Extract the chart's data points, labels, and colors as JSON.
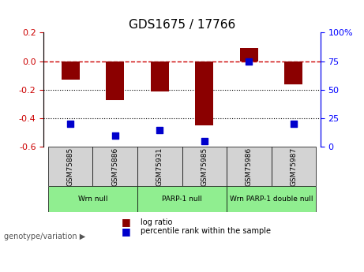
{
  "title": "GDS1675 / 17766",
  "samples": [
    "GSM75885",
    "GSM75886",
    "GSM75931",
    "GSM75985",
    "GSM75986",
    "GSM75987"
  ],
  "log_ratios": [
    -0.13,
    -0.27,
    -0.21,
    -0.45,
    0.09,
    -0.16
  ],
  "percentile_ranks": [
    20,
    10,
    15,
    5,
    75,
    20
  ],
  "ylim_left": [
    -0.6,
    0.2
  ],
  "ylim_right": [
    0,
    100
  ],
  "right_ticks": [
    0,
    25,
    50,
    75,
    100
  ],
  "right_tick_labels": [
    "0",
    "25",
    "50",
    "75",
    "100%"
  ],
  "left_ticks": [
    -0.6,
    -0.4,
    -0.2,
    0.0,
    0.2
  ],
  "hline_value": 0.0,
  "dotted_lines": [
    -0.2,
    -0.4
  ],
  "bar_color": "#8B0000",
  "dot_color": "#0000CC",
  "genotype_groups": [
    {
      "label": "Wrn null",
      "samples": [
        "GSM75885",
        "GSM75886"
      ],
      "color": "#90EE90"
    },
    {
      "label": "PARP-1 null",
      "samples": [
        "GSM75931",
        "GSM75985"
      ],
      "color": "#90EE90"
    },
    {
      "label": "Wrn PARP-1 double null",
      "samples": [
        "GSM75986",
        "GSM75987"
      ],
      "color": "#90EE90"
    }
  ],
  "legend_bar_label": "log ratio",
  "legend_dot_label": "percentile rank within the sample",
  "bar_width": 0.4,
  "xlabel": "",
  "genotype_label": "genotype/variation"
}
